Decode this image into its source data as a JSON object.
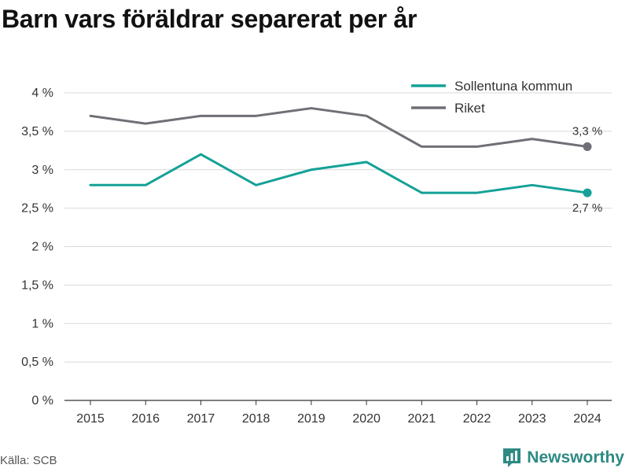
{
  "colors": {
    "sollentuna": "#14a197",
    "riket": "#6f6f76",
    "brand": "#2d8a83"
  },
  "chart_data": {
    "type": "line",
    "title": "Barn vars föräldrar separerat per år",
    "categories": [
      "2015",
      "2016",
      "2017",
      "2018",
      "2019",
      "2020",
      "2021",
      "2022",
      "2023",
      "2024"
    ],
    "series": [
      {
        "name": "Sollentuna kommun",
        "color": "#14a197",
        "values": [
          2.8,
          2.8,
          3.2,
          2.8,
          3.0,
          3.1,
          2.7,
          2.7,
          2.8,
          2.7
        ],
        "end_label": "2,7 %"
      },
      {
        "name": "Riket",
        "color": "#6f6f76",
        "values": [
          3.7,
          3.6,
          3.7,
          3.7,
          3.8,
          3.7,
          3.3,
          3.3,
          3.4,
          3.3
        ],
        "end_label": "3,3 %"
      }
    ],
    "ylim": [
      0,
      4
    ],
    "yticks": [
      0,
      0.5,
      1,
      1.5,
      2,
      2.5,
      3,
      3.5,
      4
    ],
    "ytick_labels": [
      "0 %",
      "0,5 %",
      "1 %",
      "1,5 %",
      "2 %",
      "2,5 %",
      "3 %",
      "3,5 %",
      "4 %"
    ],
    "grid": true,
    "legend_position": "top-right"
  },
  "footer": {
    "source": "Källa: SCB",
    "brand": "Newsworthy"
  }
}
